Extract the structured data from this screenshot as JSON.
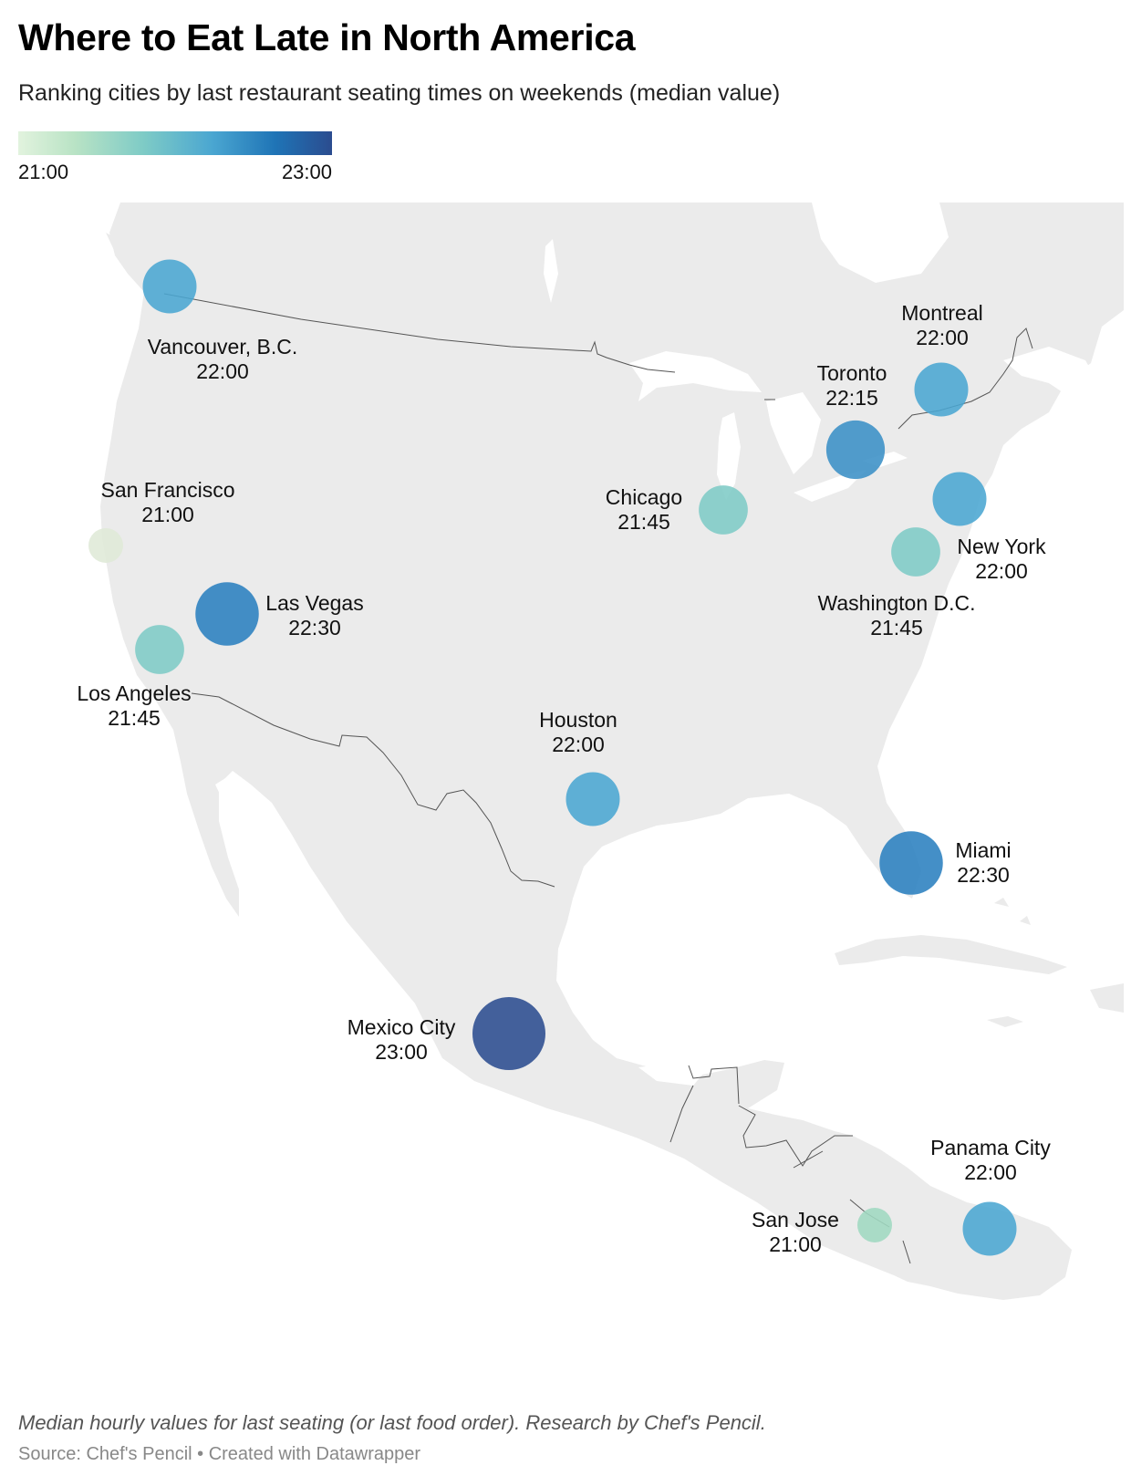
{
  "header": {
    "title": "Where to Eat Late in North America",
    "subtitle": "Ranking cities by last restaurant seating times on weekends (median value)"
  },
  "legend": {
    "min_label": "21:00",
    "max_label": "23:00",
    "color_scale": [
      "#e2f3de",
      "#b9e3c5",
      "#7ecbc6",
      "#4aa6d1",
      "#1f74b6",
      "#2b4c8f"
    ]
  },
  "map": {
    "region": "North America",
    "land_color": "#ebebeb",
    "border_color": "#555555",
    "cities": [
      {
        "name": "Vancouver, B.C.",
        "time": "22:00",
        "color": "#4aa6d1"
      },
      {
        "name": "Montreal",
        "time": "22:00",
        "color": "#4aa6d1"
      },
      {
        "name": "Toronto",
        "time": "22:15",
        "color": "#3a90c6"
      },
      {
        "name": "San Francisco",
        "time": "21:00",
        "color": "#dfe9d7"
      },
      {
        "name": "Chicago",
        "time": "21:45",
        "color": "#7ecbc6"
      },
      {
        "name": "New York",
        "time": "22:00",
        "color": "#4aa6d1"
      },
      {
        "name": "Washington D.C.",
        "time": "21:45",
        "color": "#7ecbc6"
      },
      {
        "name": "Las Vegas",
        "time": "22:30",
        "color": "#2a7fbf"
      },
      {
        "name": "Los Angeles",
        "time": "21:45",
        "color": "#7ecbc6"
      },
      {
        "name": "Houston",
        "time": "22:00",
        "color": "#4aa6d1"
      },
      {
        "name": "Miami",
        "time": "22:30",
        "color": "#2a7fbf"
      },
      {
        "name": "Mexico City",
        "time": "23:00",
        "color": "#2b4c8f"
      },
      {
        "name": "Panama City",
        "time": "22:00",
        "color": "#4aa6d1"
      },
      {
        "name": "San Jose",
        "time": "21:00",
        "color": "#9fd8c0"
      }
    ]
  },
  "footer": {
    "note": "Median hourly values for last seating (or last food order). Research by Chef's Pencil.",
    "source": "Source: Chef's Pencil • Created with Datawrapper"
  }
}
